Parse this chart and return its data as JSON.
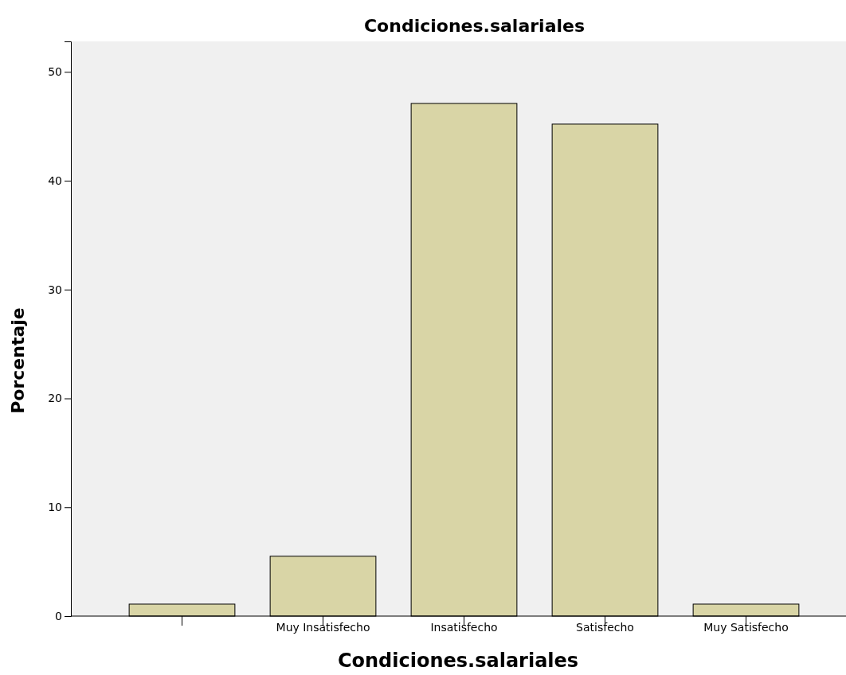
{
  "chart_data": {
    "type": "bar",
    "title": "Condiciones.salariales",
    "xlabel": "Condiciones.salariales",
    "ylabel": "Porcentaje",
    "categories": [
      null,
      "Muy Insatisfecho",
      "Insatisfecho",
      "Satisfecho",
      "Muy Satisfecho"
    ],
    "values": [
      1.1,
      5.5,
      47.1,
      45.2,
      1.1
    ],
    "color": "#d9d5a6",
    "ylim": [
      0,
      52.8
    ],
    "yticks": [
      0,
      10,
      20,
      30,
      40,
      50
    ],
    "grid": false
  }
}
